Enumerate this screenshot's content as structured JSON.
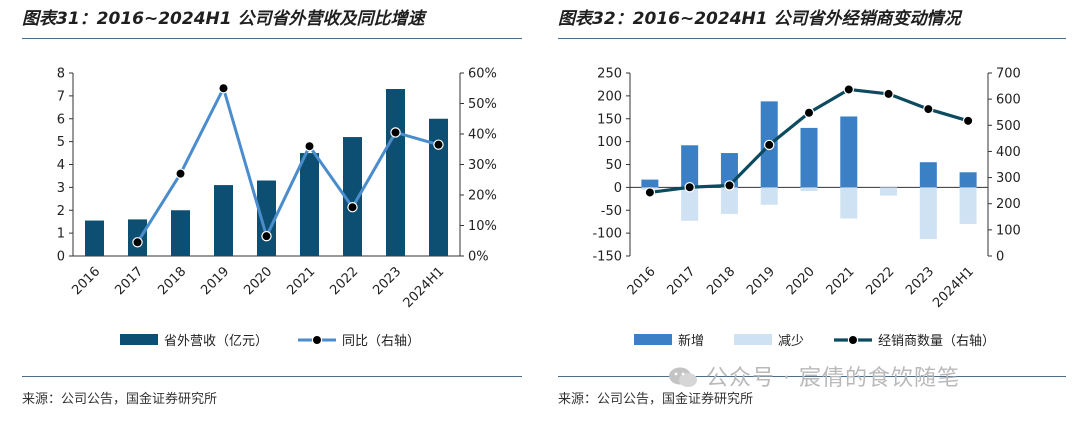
{
  "left": {
    "title": "图表31：2016~2024H1 公司省外营收及同比增速",
    "source": "来源：公司公告，国金证券研究所",
    "chart_data": {
      "type": "bar",
      "categories": [
        "2016",
        "2017",
        "2018",
        "2019",
        "2020",
        "2021",
        "2022",
        "2023",
        "2024H1"
      ],
      "series": [
        {
          "name": "省外营收（亿元）",
          "type": "bar",
          "axis": "left",
          "color": "#0d4f72",
          "values": [
            1.55,
            1.6,
            2.0,
            3.1,
            3.3,
            4.5,
            5.2,
            7.3,
            6.0
          ]
        },
        {
          "name": "同比（右轴）",
          "type": "line",
          "axis": "right",
          "color": "#4a8ccc",
          "values": [
            null,
            4.5,
            27,
            55,
            6.5,
            36,
            16,
            40.5,
            36.5
          ]
        }
      ],
      "y_left": {
        "min": 0,
        "max": 8,
        "ticks": [
          0,
          1,
          2,
          3,
          4,
          5,
          6,
          7,
          8
        ]
      },
      "y_right": {
        "min": 0,
        "max": 60,
        "ticks": [
          "0%",
          "10%",
          "20%",
          "30%",
          "40%",
          "50%",
          "60%"
        ]
      },
      "legend_position": "bottom",
      "grid": false
    }
  },
  "right": {
    "title": "图表32：2016~2024H1 公司省外经销商变动情况",
    "source": "来源：公司公告，国金证券研究所",
    "chart_data": {
      "type": "bar",
      "categories": [
        "2016",
        "2017",
        "2018",
        "2019",
        "2020",
        "2021",
        "2022",
        "2023",
        "2024H1"
      ],
      "series": [
        {
          "name": "新增",
          "type": "bar",
          "axis": "left",
          "color": "#3b7fc4",
          "values": [
            17,
            92,
            75,
            188,
            130,
            155,
            0,
            55,
            33
          ]
        },
        {
          "name": "减少",
          "type": "bar",
          "axis": "left",
          "color": "#cfe2f3",
          "values": [
            -5,
            -73,
            -58,
            -38,
            -8,
            -68,
            -18,
            -113,
            -80
          ]
        },
        {
          "name": "经销商数量（右轴）",
          "type": "line",
          "axis": "right",
          "color": "#0c4a60",
          "values": [
            243,
            263,
            270,
            425,
            548,
            637,
            620,
            562,
            517
          ]
        }
      ],
      "y_left": {
        "min": -150,
        "max": 250,
        "ticks": [
          -150,
          -100,
          -50,
          0,
          50,
          100,
          150,
          200,
          250
        ]
      },
      "y_right": {
        "min": 0,
        "max": 700,
        "ticks": [
          0,
          100,
          200,
          300,
          400,
          500,
          600,
          700
        ]
      },
      "legend_position": "bottom",
      "grid": false
    }
  },
  "watermark": "公众号 · 宸倩的食饮随笔"
}
